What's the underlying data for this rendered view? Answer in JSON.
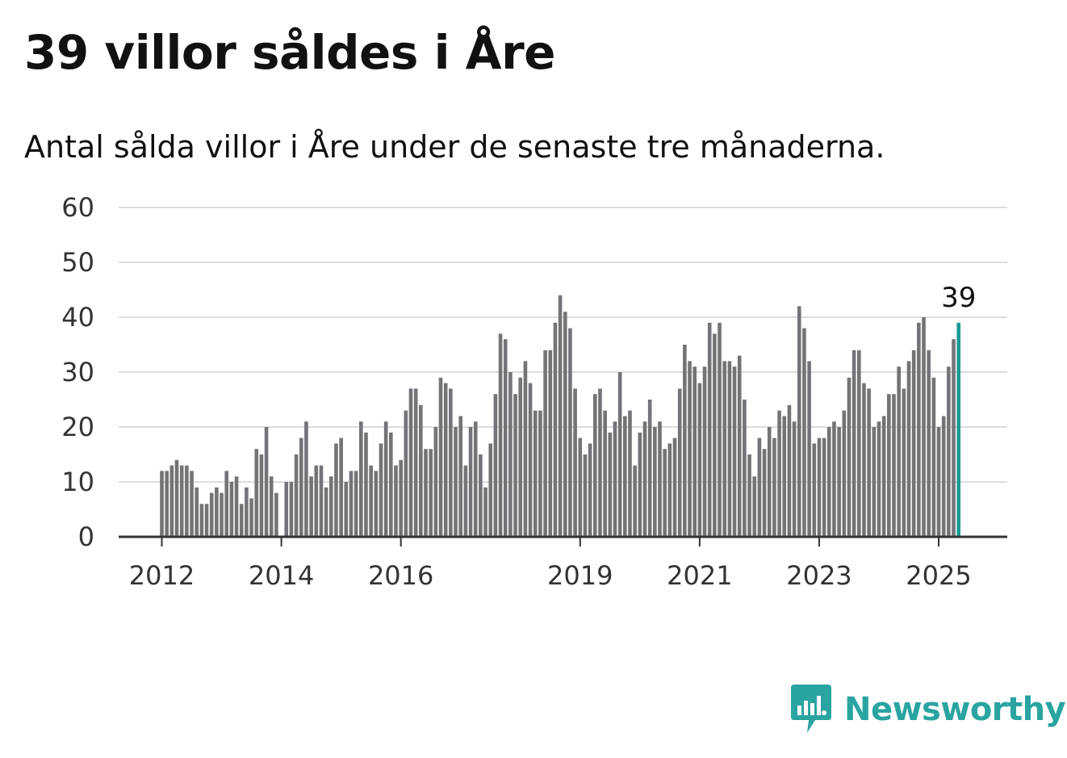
{
  "title": "39 villor såldes i Åre",
  "subtitle": "Antal sålda villor i Åre under de senaste tre månaderna.",
  "brand": {
    "name": "Newsworthy",
    "icon": "newsworthy-logo-icon",
    "color": "#2aa4a0"
  },
  "chart_data": {
    "type": "bar",
    "ylim": [
      0,
      60
    ],
    "yticks": [
      0,
      10,
      20,
      30,
      40,
      50,
      60
    ],
    "xticks": [
      "2012",
      "2014",
      "2016",
      "2019",
      "2021",
      "2023",
      "2025"
    ],
    "start_month": "2012-01",
    "grid": true,
    "bar_color": "#737378",
    "highlight_color": "#1a9a96",
    "highlight_label": "39",
    "values": [
      12,
      12,
      13,
      14,
      13,
      13,
      12,
      9,
      6,
      6,
      8,
      9,
      8,
      12,
      10,
      11,
      6,
      9,
      7,
      16,
      15,
      20,
      11,
      8,
      null,
      10,
      10,
      15,
      18,
      21,
      11,
      13,
      13,
      9,
      11,
      17,
      18,
      10,
      12,
      12,
      21,
      19,
      13,
      12,
      17,
      21,
      19,
      13,
      14,
      23,
      27,
      27,
      24,
      16,
      16,
      20,
      29,
      28,
      27,
      20,
      22,
      13,
      20,
      21,
      15,
      9,
      17,
      26,
      37,
      36,
      30,
      26,
      29,
      32,
      28,
      23,
      23,
      34,
      34,
      39,
      44,
      41,
      38,
      27,
      18,
      15,
      17,
      26,
      27,
      23,
      19,
      21,
      30,
      22,
      23,
      13,
      19,
      21,
      25,
      20,
      21,
      16,
      17,
      18,
      27,
      35,
      32,
      31,
      28,
      31,
      39,
      37,
      39,
      32,
      32,
      31,
      33,
      25,
      15,
      11,
      18,
      16,
      20,
      18,
      23,
      22,
      24,
      21,
      42,
      38,
      32,
      17,
      18,
      18,
      20,
      21,
      20,
      23,
      29,
      34,
      34,
      28,
      27,
      20,
      21,
      22,
      26,
      26,
      31,
      27,
      32,
      34,
      39,
      40,
      34,
      29,
      20,
      22,
      31,
      36,
      39
    ]
  }
}
